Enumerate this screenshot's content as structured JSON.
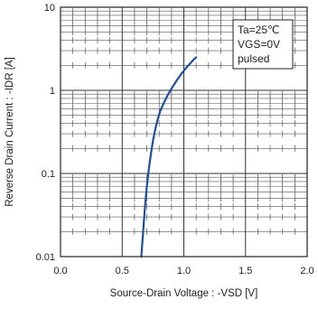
{
  "chart_data": {
    "type": "line",
    "xlabel": "Source-Drain Voltage : -VSD [V]",
    "ylabel": "Reverse Drain Current : -IDR [A]",
    "xlim": [
      0.0,
      2.0
    ],
    "ylim": [
      0.01,
      10
    ],
    "yscale": "log",
    "grid": true,
    "x_ticks": [
      0.0,
      0.5,
      1.0,
      1.5,
      2.0
    ],
    "x_tick_labels": [
      "0.0",
      "0.5",
      "1.0",
      "1.5",
      "2.0"
    ],
    "y_ticks": [
      0.01,
      0.1,
      1,
      10
    ],
    "y_tick_labels": [
      "0.01",
      "0.1",
      "1",
      "10"
    ],
    "legend": {
      "placement": "top-right",
      "lines": [
        "Ta=25℃",
        "VGS=0V",
        "pulsed"
      ]
    },
    "series": [
      {
        "color": "#1f4e9c",
        "x": [
          0.655,
          0.67,
          0.685,
          0.7,
          0.715,
          0.73,
          0.75,
          0.77,
          0.79,
          0.81,
          0.84,
          0.87,
          0.9,
          0.94,
          0.98,
          1.03,
          1.08,
          1.1
        ],
        "y": [
          0.01,
          0.02,
          0.04,
          0.07,
          0.11,
          0.16,
          0.25,
          0.35,
          0.46,
          0.57,
          0.72,
          0.88,
          1.05,
          1.3,
          1.58,
          1.95,
          2.35,
          2.5
        ]
      }
    ]
  }
}
